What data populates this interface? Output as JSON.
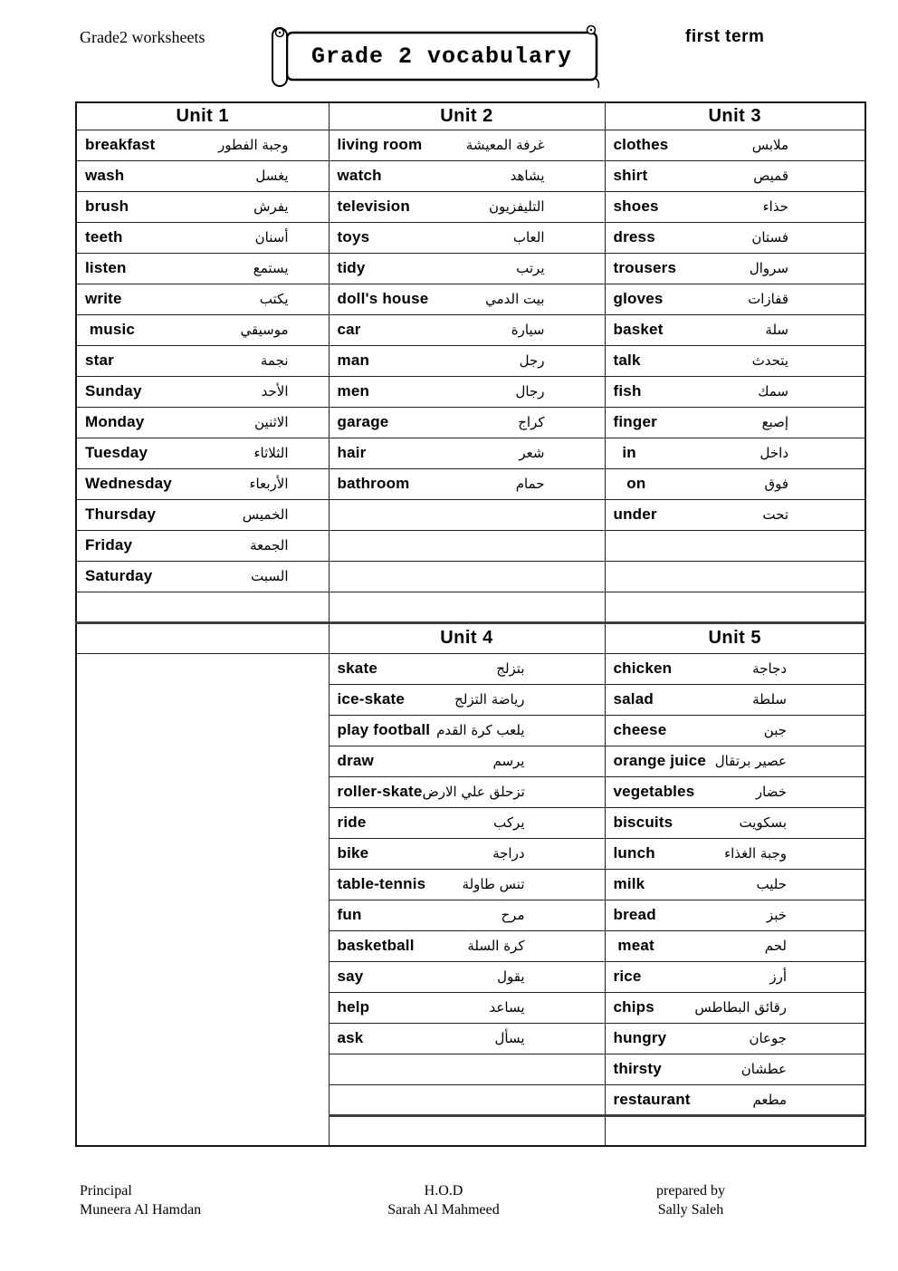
{
  "page": {
    "header_left": "Grade2 worksheets",
    "banner_title": "Grade 2 vocabulary",
    "header_right": "first term"
  },
  "table": {
    "sections": [
      {
        "headers": [
          "Unit 1",
          "Unit 2",
          "Unit 3"
        ],
        "rows": 16,
        "columns": [
          [
            {
              "en": "breakfast",
              "ar": "وجبة الفطور"
            },
            {
              "en": "wash",
              "ar": "يغسل"
            },
            {
              "en": "brush",
              "ar": "يفرش"
            },
            {
              "en": "teeth",
              "ar": "أسنان"
            },
            {
              "en": "listen",
              "ar": "يستمع"
            },
            {
              "en": "write",
              "ar": "يكتب"
            },
            {
              "en": " music",
              "ar": "موسيقي"
            },
            {
              "en": "star",
              "ar": "نجمة"
            },
            {
              "en": "Sunday",
              "ar": "الأحد"
            },
            {
              "en": "Monday",
              "ar": "الاثنين"
            },
            {
              "en": "Tuesday",
              "ar": "الثلاثاء"
            },
            {
              "en": "Wednesday",
              "ar": "الأربعاء"
            },
            {
              "en": "Thursday",
              "ar": "الخميس"
            },
            {
              "en": "Friday",
              "ar": "الجمعة"
            },
            {
              "en": "Saturday",
              "ar": "السبت"
            }
          ],
          [
            {
              "en": "living room",
              "ar": "غرفة المعيشة"
            },
            {
              "en": "watch",
              "ar": "يشاهد"
            },
            {
              "en": "television",
              "ar": "التليفزيون"
            },
            {
              "en": "toys",
              "ar": "العاب"
            },
            {
              "en": "tidy",
              "ar": "يرتب"
            },
            {
              "en": "doll's house",
              "ar": "بيت الدمي"
            },
            {
              "en": "car",
              "ar": "سيارة"
            },
            {
              "en": "man",
              "ar": "رجل"
            },
            {
              "en": "men",
              "ar": "رجال"
            },
            {
              "en": "garage",
              "ar": "كراج"
            },
            {
              "en": "hair",
              "ar": "شعر"
            },
            {
              "en": "bathroom",
              "ar": "حمام"
            }
          ],
          [
            {
              "en": "clothes",
              "ar": "ملابس"
            },
            {
              "en": "shirt",
              "ar": "قميص"
            },
            {
              "en": "shoes",
              "ar": "حذاء"
            },
            {
              "en": "dress",
              "ar": "فستان"
            },
            {
              "en": "trousers",
              "ar": "سروال"
            },
            {
              "en": "gloves",
              "ar": "قفازات"
            },
            {
              "en": "basket",
              "ar": "سلة"
            },
            {
              "en": "talk",
              "ar": "يتحدث"
            },
            {
              "en": "fish",
              "ar": "سمك"
            },
            {
              "en": "finger",
              "ar": "إصبع"
            },
            {
              "en": "  in",
              "ar": "داخل"
            },
            {
              "en": "   on",
              "ar": "فوق"
            },
            {
              "en": "under",
              "ar": "تحت"
            }
          ]
        ]
      },
      {
        "headers": [
          "",
          "Unit 4",
          "Unit 5"
        ],
        "rows": 16,
        "columns": [
          null,
          [
            {
              "en": "skate",
              "ar": "بتزلج"
            },
            {
              "en": "ice-skate",
              "ar": "رياضة التزلج"
            },
            {
              "en": "play football",
              "ar": "يلعب كرة القدم"
            },
            {
              "en": "draw",
              "ar": "يرسم"
            },
            {
              "en": "roller-skate",
              "ar": "تزحلق علي الارض"
            },
            {
              "en": "ride",
              "ar": "يركب"
            },
            {
              "en": "bike",
              "ar": "دراجة"
            },
            {
              "en": "table-tennis",
              "ar": "تنس طاولة"
            },
            {
              "en": "fun",
              "ar": "مرح"
            },
            {
              "en": "basketball",
              "ar": "كرة السلة"
            },
            {
              "en": "say",
              "ar": "يقول"
            },
            {
              "en": "help",
              "ar": "يساعد"
            },
            {
              "en": "ask",
              "ar": "يسأل"
            }
          ],
          [
            {
              "en": "chicken",
              "ar": "دجاجة"
            },
            {
              "en": "salad",
              "ar": "سلطة"
            },
            {
              "en": "cheese",
              "ar": "جبن"
            },
            {
              "en": "orange juice",
              "ar": "عصير برتقال"
            },
            {
              "en": "vegetables",
              "ar": "خضار"
            },
            {
              "en": "biscuits",
              "ar": "بسكويت"
            },
            {
              "en": "lunch",
              "ar": "وجبة الغذاء"
            },
            {
              "en": "milk",
              "ar": "حليب"
            },
            {
              "en": "bread",
              "ar": "خبز"
            },
            {
              "en": " meat",
              "ar": "لحم"
            },
            {
              "en": "rice",
              "ar": "أرز"
            },
            {
              "en": "chips",
              "ar": "رقائق البطاطس"
            },
            {
              "en": "hungry",
              "ar": "جوعان"
            },
            {
              "en": "thirsty",
              "ar": "عطشان"
            },
            {
              "en": "restaurant",
              "ar": "مطعم"
            }
          ]
        ]
      }
    ]
  },
  "footer": {
    "columns": [
      {
        "title": "Principal",
        "name": "Muneera Al Hamdan"
      },
      {
        "title": "H.O.D",
        "name": "Sarah Al Mahmeed"
      },
      {
        "title": "prepared by",
        "name": "Sally Saleh"
      }
    ]
  },
  "colors": {
    "text": "#000000",
    "background": "#ffffff",
    "border": "#222222",
    "thick_border": "#3e3e3e"
  }
}
